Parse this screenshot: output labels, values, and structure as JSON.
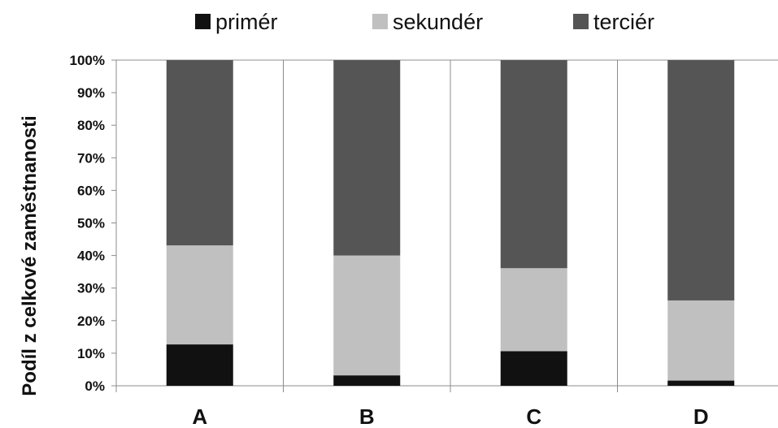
{
  "chart_data": {
    "type": "bar",
    "stacked": true,
    "percent_stacked": true,
    "categories": [
      "A",
      "B",
      "C",
      "D"
    ],
    "series": [
      {
        "name": "primér",
        "color": "#111111",
        "values": [
          12.7,
          3.2,
          10.6,
          1.6
        ]
      },
      {
        "name": "sekundér",
        "color": "#c0c0c0",
        "values": [
          30.4,
          36.8,
          25.5,
          24.6
        ]
      },
      {
        "name": "terciér",
        "color": "#555555",
        "values": [
          56.9,
          60.0,
          63.9,
          73.8
        ]
      }
    ],
    "title": "",
    "xlabel": "",
    "ylabel": "Podíl z celkové zaměstnanosti",
    "ylim": [
      0,
      100
    ],
    "y_ticks": [
      "0%",
      "10%",
      "20%",
      "30%",
      "40%",
      "50%",
      "60%",
      "70%",
      "80%",
      "90%",
      "100%"
    ],
    "grid": "vertical lines between categories",
    "legend_position": "top"
  }
}
